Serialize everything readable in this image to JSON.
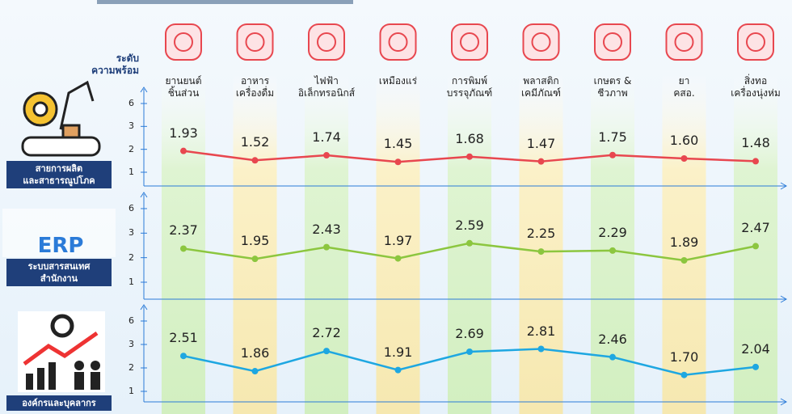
{
  "chart_data": [
    {
      "type": "line",
      "title": "สายการผลิต\nและสาธารณูปโภค",
      "y_label": "ระดับ\nความพร้อม",
      "categories": [
        "ยานยนต์\nชิ้นส่วน",
        "อาหาร\nเครื่องดื่ม",
        "ไฟฟ้า\nอิเล็กทรอนิกส์",
        "เหมืองแร่",
        "การพิมพ์\nบรรจุภัณฑ์",
        "พลาสติก\nเคมีภัณฑ์",
        "เกษตร &\nชีวภาพ",
        "ยา\nคสอ.",
        "สิ่งทอ\nเครื่องนุ่งห่ม"
      ],
      "series": [
        {
          "color": "#e8474f",
          "values": [
            1.93,
            1.52,
            1.74,
            1.45,
            1.68,
            1.47,
            1.75,
            1.6,
            1.48
          ],
          "value_labels": [
            "1.93",
            "1.52",
            "1.74",
            "1.45",
            "1.68",
            "1.47",
            "1.75",
            "1.60",
            "1.48"
          ]
        }
      ],
      "ylim": [
        1,
        6
      ],
      "yticks": [
        1,
        2,
        3,
        6
      ]
    },
    {
      "type": "line",
      "title": "ระบบสารสนเทศ\nสำนักงาน",
      "series": [
        {
          "color": "#8cc63f",
          "values": [
            2.37,
            1.95,
            2.43,
            1.97,
            2.59,
            2.25,
            2.29,
            1.89,
            2.47
          ],
          "value_labels": [
            "2.37",
            "1.95",
            "2.43",
            "1.97",
            "2.59",
            "2.25",
            "2.29",
            "1.89",
            "2.47"
          ]
        }
      ],
      "ylim": [
        1,
        6
      ],
      "yticks": [
        1,
        2,
        3,
        6
      ]
    },
    {
      "type": "line",
      "title": "องค์กรและบุคลากร",
      "series": [
        {
          "color": "#1ea7e1",
          "values": [
            2.51,
            1.86,
            2.72,
            1.91,
            2.69,
            2.81,
            2.46,
            1.7,
            2.04
          ],
          "value_labels": [
            "2.51",
            "1.86",
            "2.72",
            "1.91",
            "2.69",
            "2.81",
            "2.46",
            "1.70",
            "2.04"
          ]
        }
      ],
      "ylim": [
        1,
        6
      ],
      "yticks": [
        1,
        2,
        3,
        6
      ]
    }
  ]
}
